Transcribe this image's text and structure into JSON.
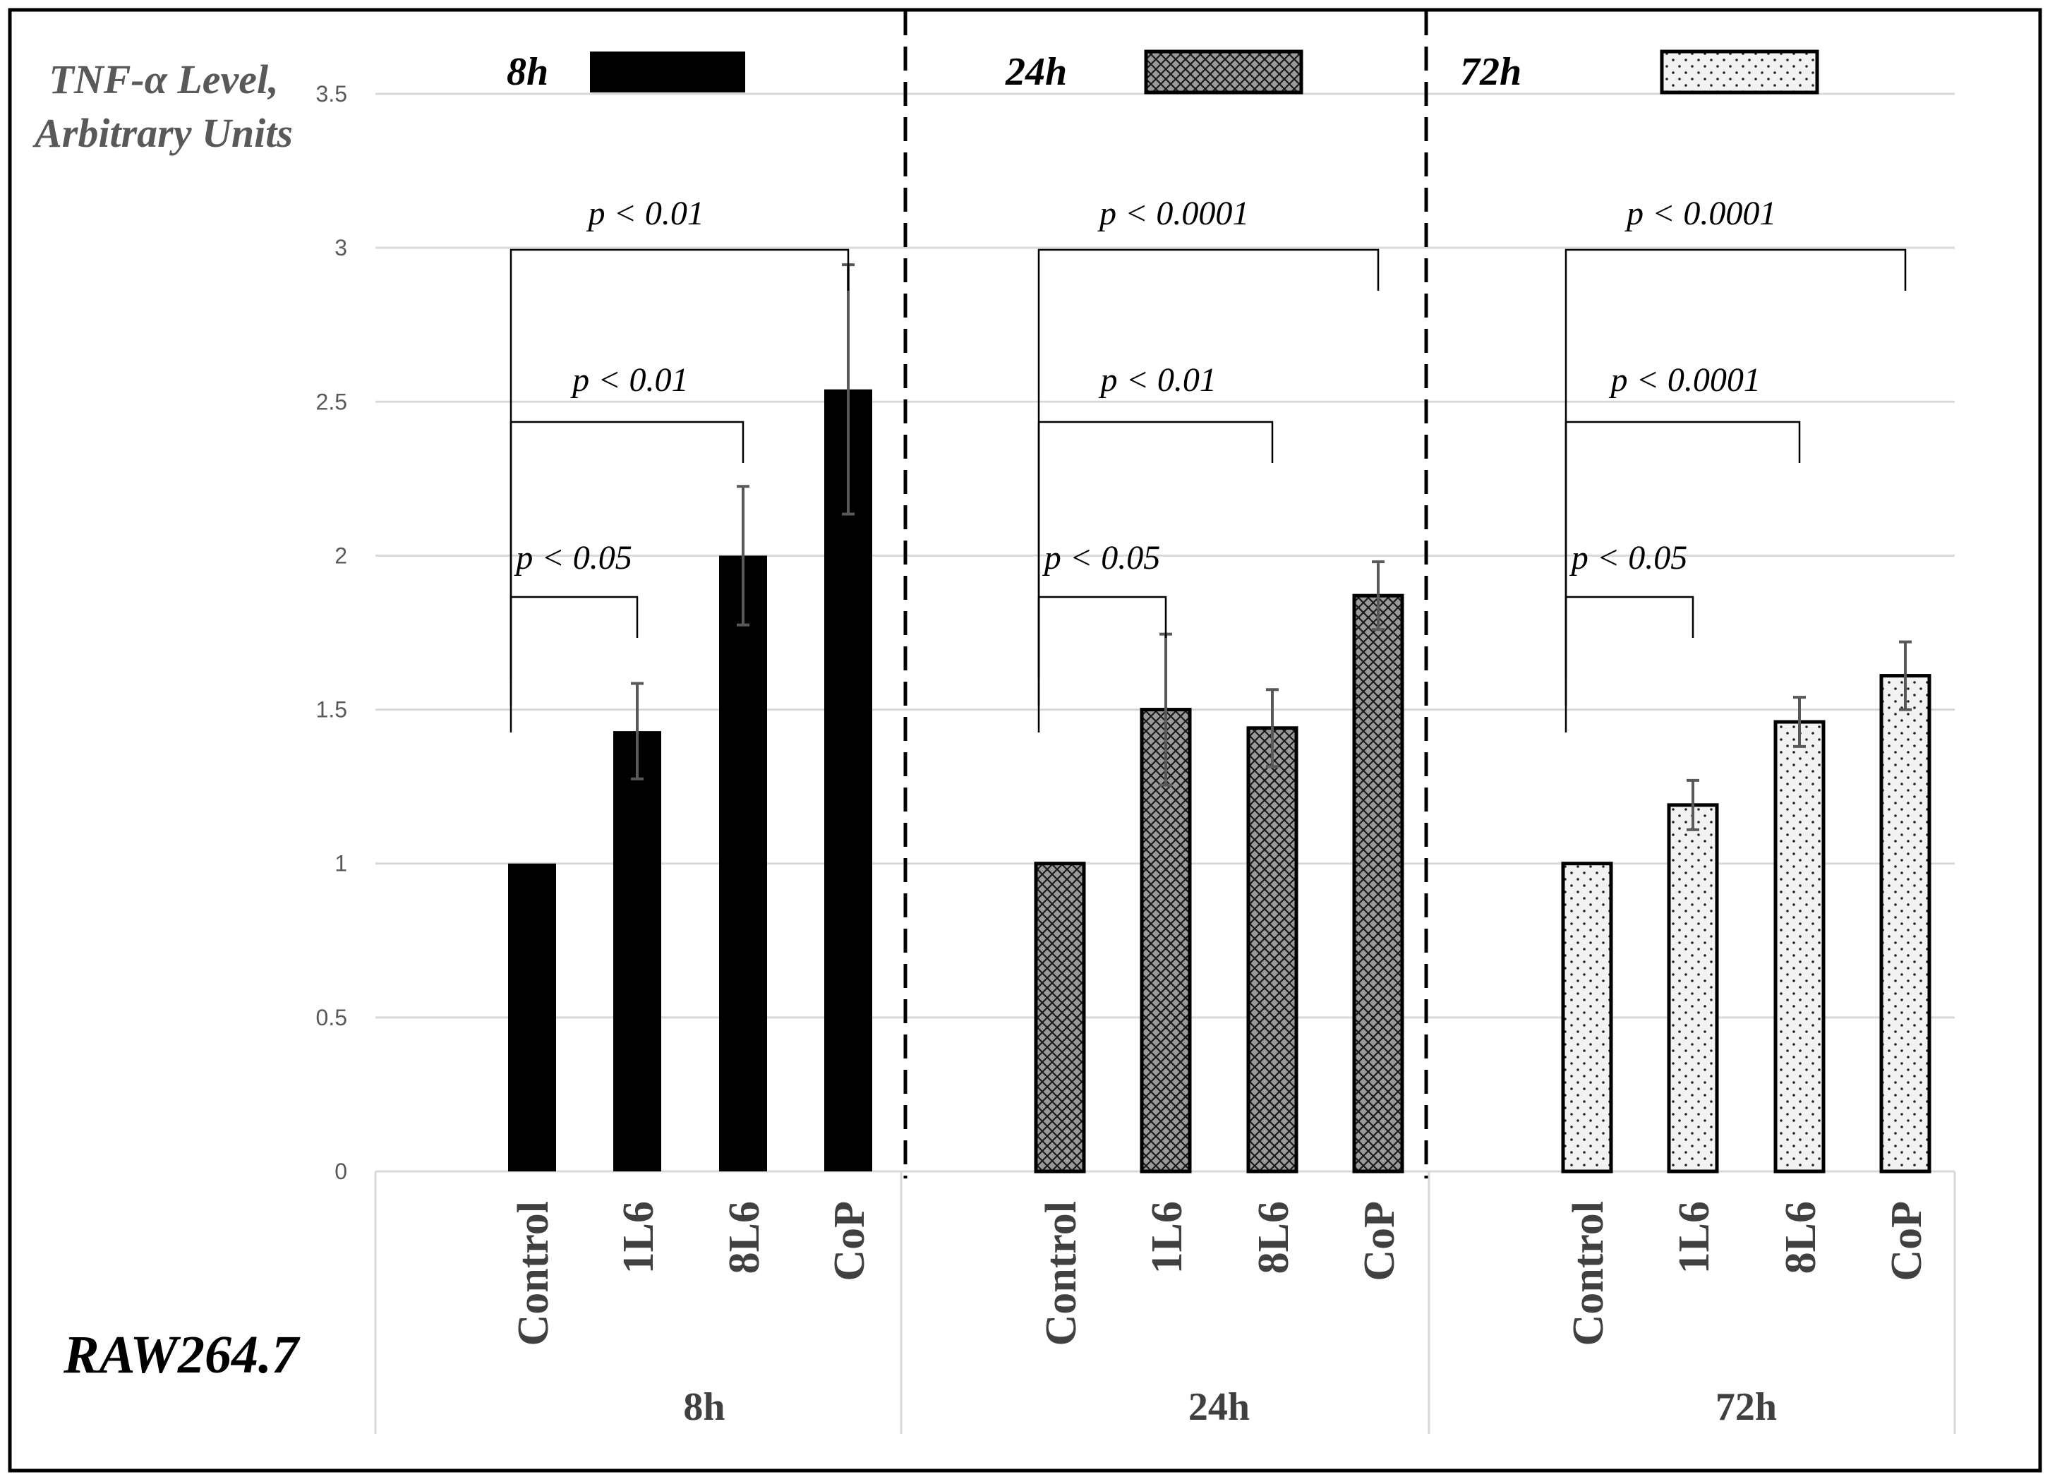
{
  "chart_data": {
    "type": "bar",
    "cell_line": "RAW264.7",
    "ylabel_line1": "TNF-α  Level,",
    "ylabel_line2": "Arbitrary Units",
    "ylim": [
      0,
      3.5
    ],
    "yticks": [
      "0",
      "0.5",
      "1",
      "1.5",
      "2",
      "2.5",
      "3",
      "3.5"
    ],
    "ytick_values": [
      0,
      0.5,
      1,
      1.5,
      2,
      2.5,
      3,
      3.5
    ],
    "grid": true,
    "legend": [
      {
        "label": "8h",
        "pattern": "solid"
      },
      {
        "label": "24h",
        "pattern": "crosshatch"
      },
      {
        "label": "72h",
        "pattern": "dots"
      }
    ],
    "groups": [
      {
        "name": "8h",
        "pattern": "solid",
        "categories": [
          "Control",
          "1L6",
          "8L6",
          "CoP"
        ],
        "values": [
          1.0,
          1.43,
          2.0,
          2.54
        ],
        "errors": [
          0.0,
          0.155,
          0.225,
          0.405
        ],
        "comparisons": [
          {
            "label": "p < 0.05",
            "from": 0,
            "to": 1
          },
          {
            "label": "p < 0.01",
            "from": 0,
            "to": 2
          },
          {
            "label": "p < 0.01",
            "from": 0,
            "to": 3
          }
        ]
      },
      {
        "name": "24h",
        "pattern": "crosshatch",
        "categories": [
          "Control",
          "1L6",
          "8L6",
          "CoP"
        ],
        "values": [
          1.0,
          1.5,
          1.44,
          1.87
        ],
        "errors": [
          0.0,
          0.245,
          0.125,
          0.11
        ],
        "comparisons": [
          {
            "label": "p < 0.05",
            "from": 0,
            "to": 1
          },
          {
            "label": "p < 0.01",
            "from": 0,
            "to": 2
          },
          {
            "label": "p < 0.0001",
            "from": 0,
            "to": 3
          }
        ]
      },
      {
        "name": "72h",
        "pattern": "dots",
        "categories": [
          "Control",
          "1L6",
          "8L6",
          "CoP"
        ],
        "values": [
          1.0,
          1.19,
          1.46,
          1.61
        ],
        "errors": [
          0.0,
          0.08,
          0.08,
          0.11
        ],
        "comparisons": [
          {
            "label": "p < 0.05",
            "from": 0,
            "to": 1
          },
          {
            "label": "p < 0.0001",
            "from": 0,
            "to": 2
          },
          {
            "label": "p < 0.0001",
            "from": 0,
            "to": 3
          }
        ]
      }
    ]
  }
}
